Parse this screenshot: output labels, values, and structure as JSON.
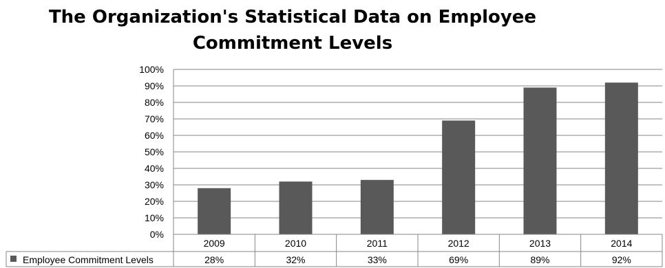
{
  "chart_data": {
    "type": "bar",
    "title_lines": [
      "The Organization's Statistical Data on Employee",
      "Commitment Levels"
    ],
    "categories": [
      "2009",
      "2010",
      "2011",
      "2012",
      "2013",
      "2014"
    ],
    "series": [
      {
        "name": "Employee Commitment Levels",
        "values": [
          28,
          32,
          33,
          69,
          89,
          92
        ],
        "labels": [
          "28%",
          "32%",
          "33%",
          "69%",
          "89%",
          "92%"
        ]
      }
    ],
    "ylim": [
      0,
      100
    ],
    "y_ticks": [
      "0%",
      "10%",
      "20%",
      "30%",
      "40%",
      "50%",
      "60%",
      "70%",
      "80%",
      "90%",
      "100%"
    ],
    "grid": true,
    "legend": "data-table",
    "bar_color": "#595959"
  }
}
